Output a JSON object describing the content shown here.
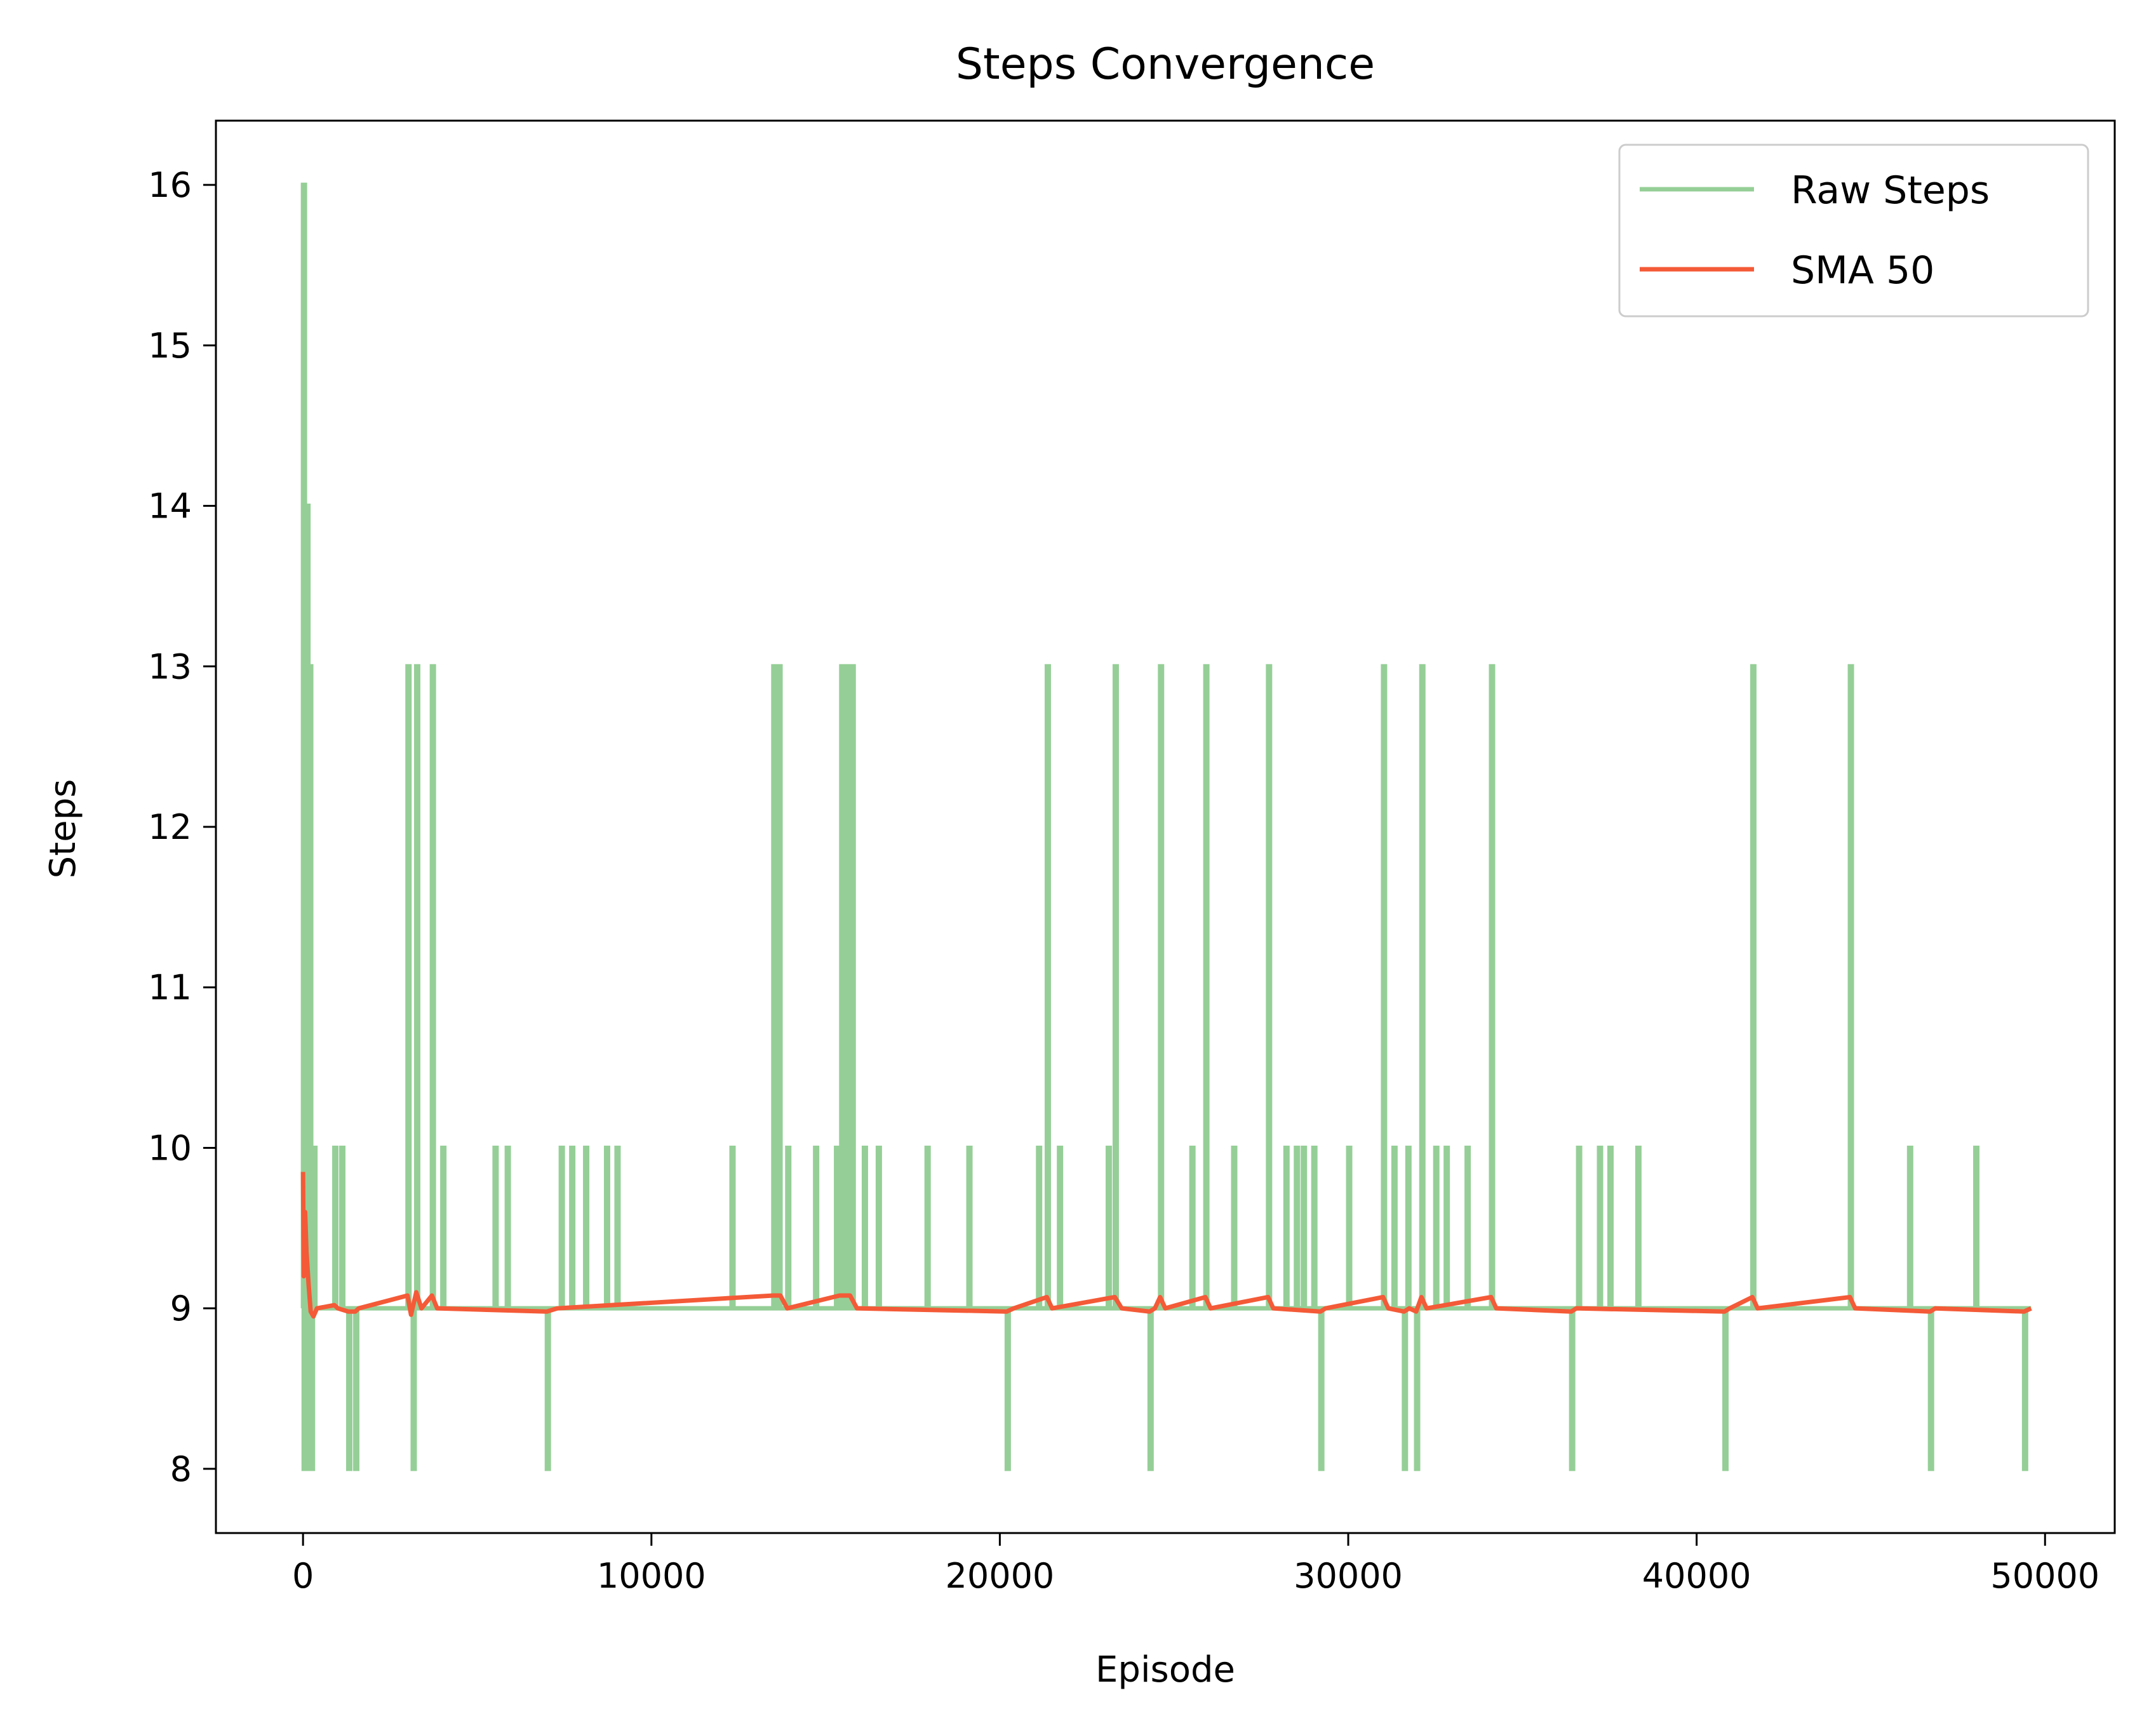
{
  "chart_data": {
    "type": "line",
    "title": "Steps Convergence",
    "xlabel": "Episode",
    "ylabel": "Steps",
    "xlim": [
      -2500,
      52000
    ],
    "ylim": [
      7.6,
      16.4
    ],
    "x_ticks": [
      0,
      10000,
      20000,
      30000,
      40000,
      50000
    ],
    "x_tick_labels": [
      "0",
      "10000",
      "20000",
      "30000",
      "40000",
      "50000"
    ],
    "y_ticks": [
      8,
      9,
      10,
      11,
      12,
      13,
      14,
      15,
      16
    ],
    "y_tick_labels": [
      "8",
      "9",
      "10",
      "11",
      "12",
      "13",
      "14",
      "15",
      "16"
    ],
    "grid": false,
    "legend_position": "upper-right",
    "series": [
      {
        "name": "Raw Steps",
        "color": "#95cf97",
        "baseline": 9,
        "x_range": [
          0,
          49600
        ],
        "values_note_free_spikes": true,
        "spikes": [
          [
            0,
            16
          ],
          [
            20,
            8
          ],
          [
            60,
            13
          ],
          [
            100,
            14
          ],
          [
            140,
            8
          ],
          [
            180,
            13
          ],
          [
            230,
            8
          ],
          [
            300,
            10
          ],
          [
            900,
            10
          ],
          [
            1100,
            10
          ],
          [
            1300,
            8
          ],
          [
            1500,
            8
          ],
          [
            3000,
            13
          ],
          [
            3150,
            8
          ],
          [
            3250,
            13
          ],
          [
            3700,
            13
          ],
          [
            4000,
            10
          ],
          [
            5500,
            10
          ],
          [
            5850,
            10
          ],
          [
            7000,
            8
          ],
          [
            7400,
            10
          ],
          [
            7700,
            10
          ],
          [
            8100,
            10
          ],
          [
            8700,
            10
          ],
          [
            9000,
            10
          ],
          [
            12300,
            10
          ],
          [
            13500,
            13
          ],
          [
            13650,
            13
          ],
          [
            13900,
            10
          ],
          [
            14700,
            10
          ],
          [
            15300,
            10
          ],
          [
            15450,
            13
          ],
          [
            15600,
            13
          ],
          [
            15750,
            13
          ],
          [
            16100,
            10
          ],
          [
            16500,
            10
          ],
          [
            17900,
            10
          ],
          [
            19100,
            10
          ],
          [
            20200,
            8
          ],
          [
            21100,
            10
          ],
          [
            21350,
            13
          ],
          [
            21700,
            10
          ],
          [
            23100,
            10
          ],
          [
            23300,
            13
          ],
          [
            24300,
            8
          ],
          [
            24600,
            13
          ],
          [
            25500,
            10
          ],
          [
            25900,
            13
          ],
          [
            26700,
            10
          ],
          [
            27700,
            13
          ],
          [
            28200,
            10
          ],
          [
            28500,
            10
          ],
          [
            28700,
            10
          ],
          [
            29000,
            10
          ],
          [
            29200,
            8
          ],
          [
            30000,
            10
          ],
          [
            31000,
            13
          ],
          [
            31300,
            10
          ],
          [
            31600,
            8
          ],
          [
            31700,
            10
          ],
          [
            31950,
            8
          ],
          [
            32100,
            13
          ],
          [
            32500,
            10
          ],
          [
            32800,
            10
          ],
          [
            33400,
            10
          ],
          [
            34100,
            13
          ],
          [
            36400,
            8
          ],
          [
            36600,
            10
          ],
          [
            37200,
            10
          ],
          [
            37500,
            10
          ],
          [
            38300,
            10
          ],
          [
            40800,
            8
          ],
          [
            41600,
            13
          ],
          [
            44400,
            13
          ],
          [
            46100,
            10
          ],
          [
            46700,
            8
          ],
          [
            48000,
            10
          ],
          [
            49400,
            8
          ]
        ]
      },
      {
        "name": "SMA 50",
        "color": "#f45a37",
        "points": [
          [
            0,
            9.85
          ],
          [
            20,
            9.2
          ],
          [
            60,
            9.6
          ],
          [
            100,
            9.35
          ],
          [
            160,
            9.15
          ],
          [
            220,
            8.98
          ],
          [
            300,
            8.95
          ],
          [
            400,
            9.0
          ],
          [
            900,
            9.02
          ],
          [
            1000,
            9.0
          ],
          [
            1300,
            8.98
          ],
          [
            1500,
            8.98
          ],
          [
            1600,
            9.0
          ],
          [
            3000,
            9.08
          ],
          [
            3100,
            8.96
          ],
          [
            3250,
            9.1
          ],
          [
            3400,
            9.0
          ],
          [
            3700,
            9.08
          ],
          [
            3850,
            9.0
          ],
          [
            7000,
            8.98
          ],
          [
            7300,
            9.0
          ],
          [
            13500,
            9.08
          ],
          [
            13700,
            9.08
          ],
          [
            13900,
            9.0
          ],
          [
            15400,
            9.08
          ],
          [
            15700,
            9.08
          ],
          [
            15900,
            9.0
          ],
          [
            20200,
            8.98
          ],
          [
            20400,
            9.0
          ],
          [
            21350,
            9.07
          ],
          [
            21500,
            9.0
          ],
          [
            23300,
            9.07
          ],
          [
            23500,
            9.0
          ],
          [
            24300,
            8.98
          ],
          [
            24450,
            9.0
          ],
          [
            24600,
            9.07
          ],
          [
            24750,
            9.0
          ],
          [
            25900,
            9.07
          ],
          [
            26050,
            9.0
          ],
          [
            27700,
            9.07
          ],
          [
            27850,
            9.0
          ],
          [
            29200,
            8.98
          ],
          [
            29350,
            9.0
          ],
          [
            31000,
            9.07
          ],
          [
            31150,
            9.0
          ],
          [
            31600,
            8.98
          ],
          [
            31750,
            9.0
          ],
          [
            31950,
            8.98
          ],
          [
            32100,
            9.07
          ],
          [
            32250,
            9.0
          ],
          [
            34100,
            9.07
          ],
          [
            34250,
            9.0
          ],
          [
            36400,
            8.98
          ],
          [
            36550,
            9.0
          ],
          [
            40800,
            8.98
          ],
          [
            40950,
            9.0
          ],
          [
            41600,
            9.07
          ],
          [
            41750,
            9.0
          ],
          [
            44400,
            9.07
          ],
          [
            44550,
            9.0
          ],
          [
            46700,
            8.98
          ],
          [
            46850,
            9.0
          ],
          [
            49400,
            8.98
          ],
          [
            49600,
            9.0
          ]
        ]
      }
    ]
  }
}
